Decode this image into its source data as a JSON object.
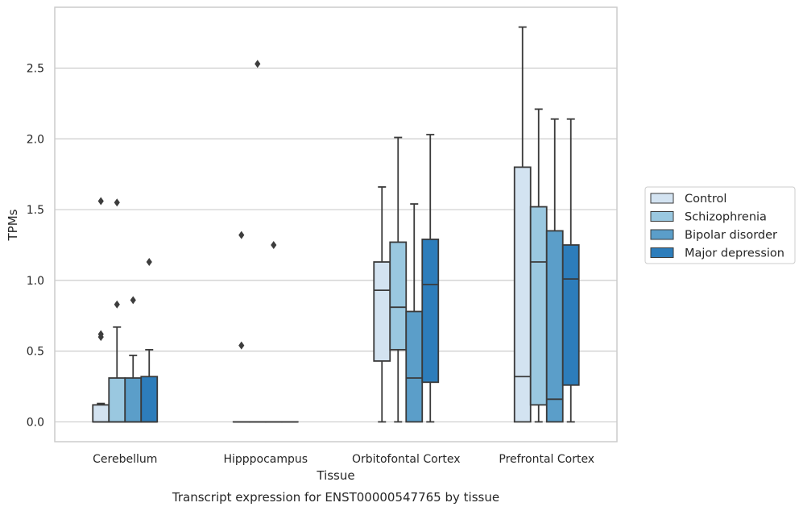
{
  "chart_data": {
    "type": "box",
    "title": "",
    "caption": "Transcript expression for ENST00000547765 by tissue",
    "xlabel": "Tissue",
    "ylabel": "TPMs",
    "ylim": [
      -0.14,
      2.93
    ],
    "yticks": [
      0.0,
      0.5,
      1.0,
      1.5,
      2.0,
      2.5
    ],
    "ytick_labels": [
      "0.0",
      "0.5",
      "1.0",
      "1.5",
      "2.0",
      "2.5"
    ],
    "grid": "horizontal",
    "legend_position": "right",
    "categories": [
      "Cerebellum",
      "Hipppocampus",
      "Orbitofontal Cortex",
      "Prefrontal Cortex"
    ],
    "series": [
      {
        "name": "Control",
        "color": "#d3e3f1",
        "boxes": [
          {
            "q1": 0.0,
            "median": 0.0,
            "q3": 0.12,
            "whislo": 0.0,
            "whishi": 0.13,
            "fliers": [
              0.6,
              0.62,
              1.56
            ]
          },
          {
            "q1": 0.0,
            "median": 0.0,
            "q3": 0.0,
            "whislo": 0.0,
            "whishi": 0.0,
            "fliers": [
              0.54,
              1.32
            ]
          },
          {
            "q1": 0.43,
            "median": 0.93,
            "q3": 1.13,
            "whislo": 0.0,
            "whishi": 1.66,
            "fliers": []
          },
          {
            "q1": 0.0,
            "median": 0.32,
            "q3": 1.8,
            "whislo": 0.0,
            "whishi": 2.79,
            "fliers": []
          }
        ]
      },
      {
        "name": "Schizophrenia",
        "color": "#9ac8e0",
        "boxes": [
          {
            "q1": 0.0,
            "median": 0.0,
            "q3": 0.31,
            "whislo": 0.0,
            "whishi": 0.67,
            "fliers": [
              0.83,
              1.55
            ]
          },
          {
            "q1": 0.0,
            "median": 0.0,
            "q3": 0.0,
            "whislo": 0.0,
            "whishi": 0.0,
            "fliers": [
              2.53
            ]
          },
          {
            "q1": 0.51,
            "median": 0.81,
            "q3": 1.27,
            "whislo": 0.0,
            "whishi": 2.01,
            "fliers": []
          },
          {
            "q1": 0.12,
            "median": 1.13,
            "q3": 1.52,
            "whislo": 0.0,
            "whishi": 2.21,
            "fliers": []
          }
        ]
      },
      {
        "name": "Bipolar disorder",
        "color": "#5b9ec9",
        "boxes": [
          {
            "q1": 0.0,
            "median": 0.0,
            "q3": 0.31,
            "whislo": 0.0,
            "whishi": 0.47,
            "fliers": [
              0.86
            ]
          },
          {
            "q1": 0.0,
            "median": 0.0,
            "q3": 0.0,
            "whislo": 0.0,
            "whishi": 0.0,
            "fliers": [
              1.25
            ]
          },
          {
            "q1": 0.0,
            "median": 0.31,
            "q3": 0.78,
            "whislo": 0.0,
            "whishi": 1.54,
            "fliers": []
          },
          {
            "q1": 0.0,
            "median": 0.16,
            "q3": 1.35,
            "whislo": 0.0,
            "whishi": 2.14,
            "fliers": []
          }
        ]
      },
      {
        "name": "Major depression",
        "color": "#2d7dbb",
        "boxes": [
          {
            "q1": 0.0,
            "median": 0.0,
            "q3": 0.32,
            "whislo": 0.0,
            "whishi": 0.51,
            "fliers": [
              1.13
            ]
          },
          {
            "q1": 0.0,
            "median": 0.0,
            "q3": 0.0,
            "whislo": 0.0,
            "whishi": 0.0,
            "fliers": []
          },
          {
            "q1": 0.28,
            "median": 0.97,
            "q3": 1.29,
            "whislo": 0.0,
            "whishi": 2.03,
            "fliers": []
          },
          {
            "q1": 0.26,
            "median": 1.01,
            "q3": 1.25,
            "whislo": 0.0,
            "whishi": 2.14,
            "fliers": []
          }
        ]
      }
    ]
  },
  "style": {
    "grid_color": "#cccccc",
    "frame_color": "#cccccc",
    "line_color": "#3a3a3a"
  }
}
